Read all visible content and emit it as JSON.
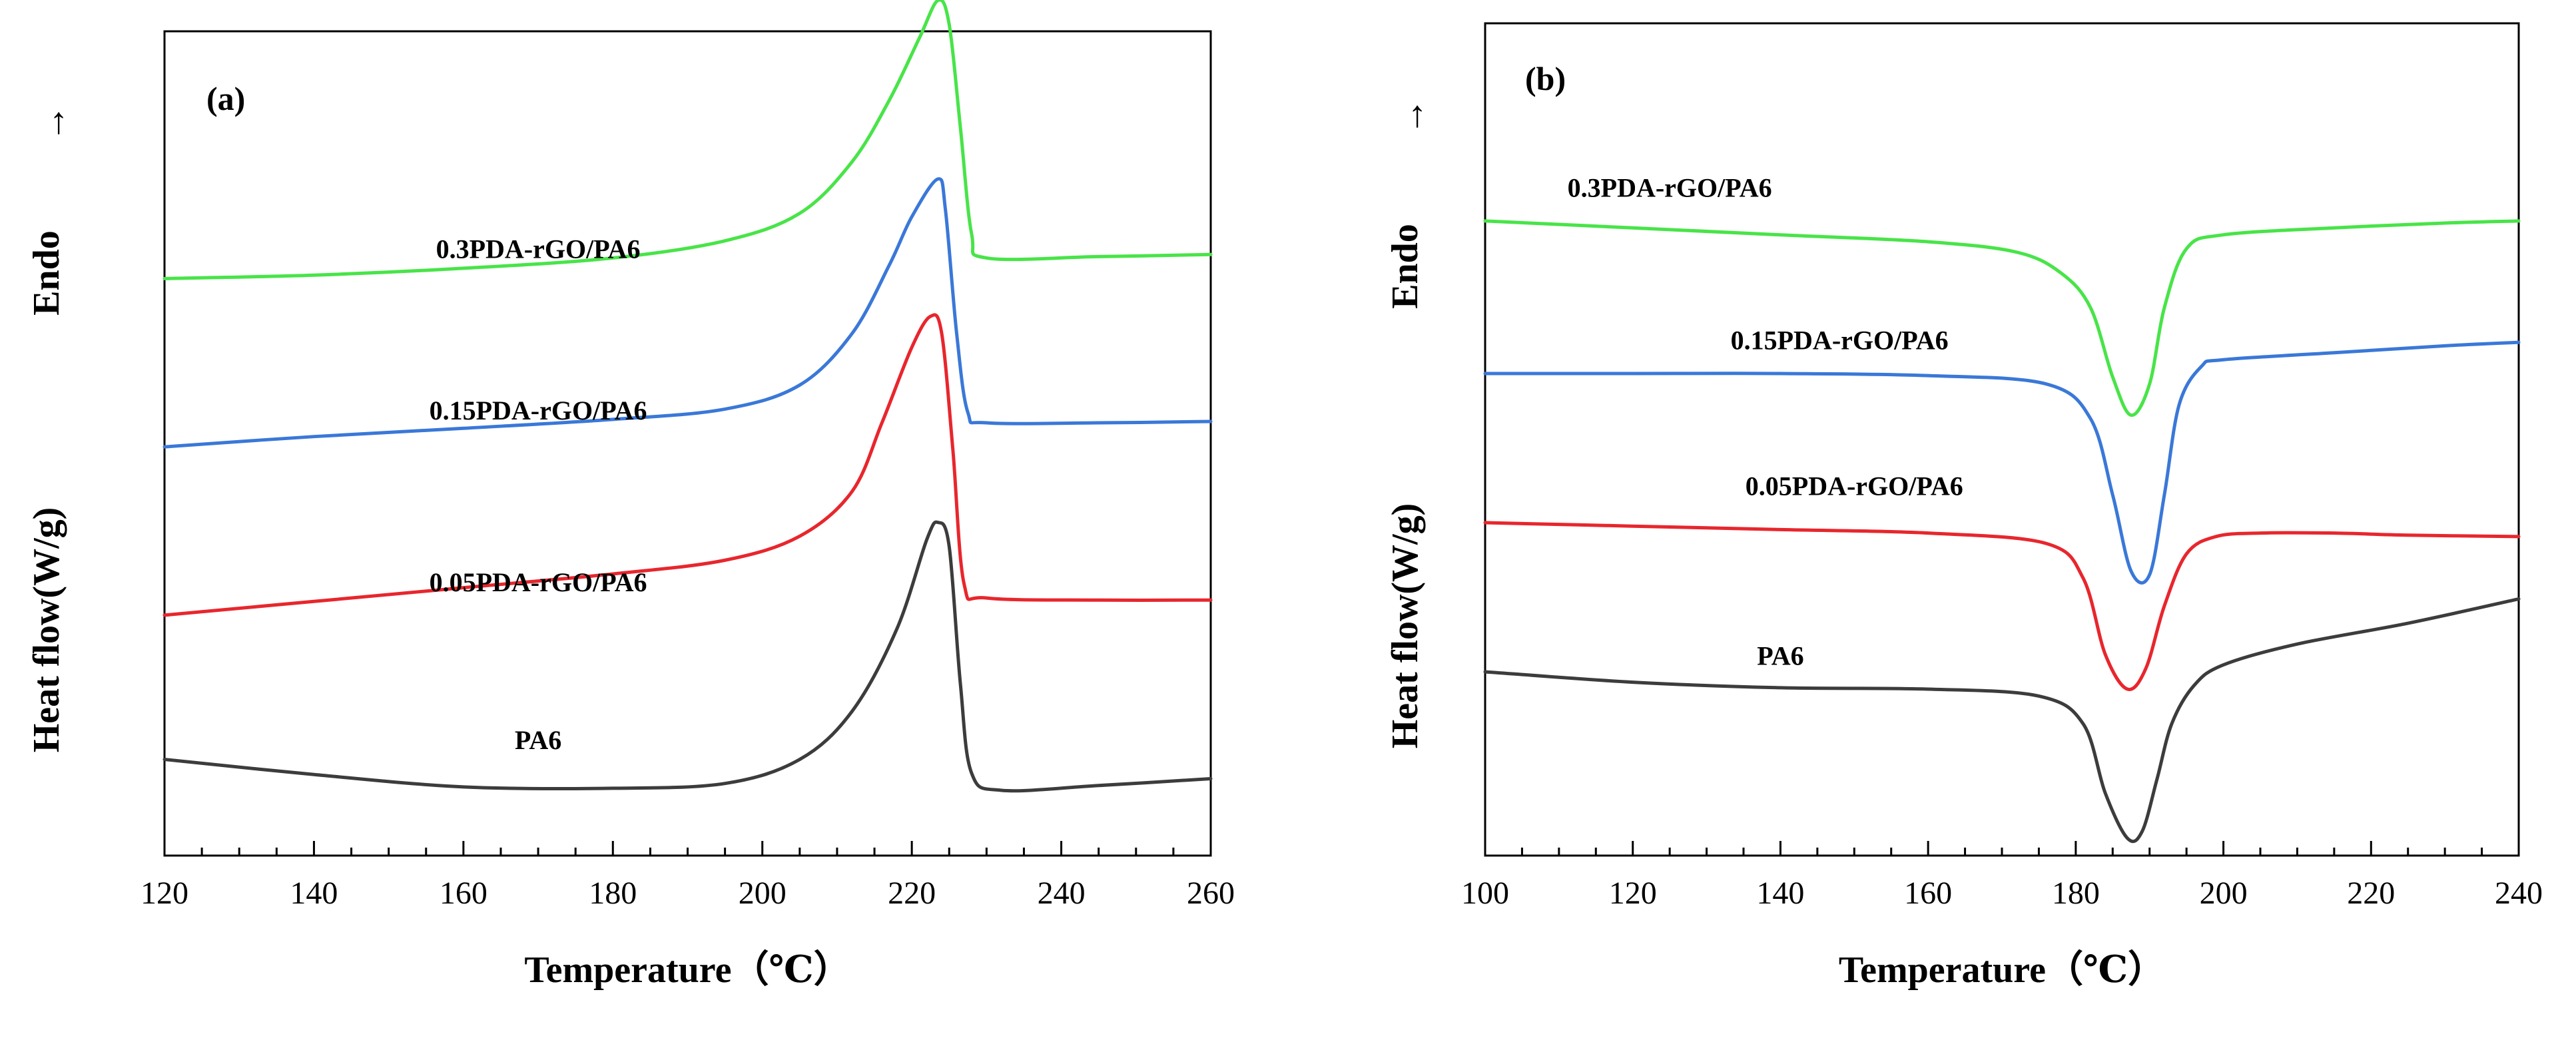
{
  "chart_data": [
    {
      "type": "line",
      "panel_label": "(a)",
      "xlabel": "Temperature（℃）",
      "ylabel": "Heat flow(W/g)",
      "direction_label": "Endo",
      "direction_arrow": "↑",
      "xlim": [
        120,
        260
      ],
      "ylim": [
        0,
        12
      ],
      "xticks": [
        "120",
        "140",
        "160",
        "180",
        "200",
        "220",
        "240",
        "260"
      ],
      "yticks": [],
      "series": [
        {
          "name": "PA6",
          "color": "#3c3c3c",
          "label_at": [
            170,
            1.55
          ],
          "x": [
            120,
            140,
            160,
            180,
            195,
            205,
            212,
            218,
            222,
            223.5,
            225,
            226.5,
            228,
            232,
            245,
            260
          ],
          "y": [
            1.4,
            1.18,
            1.0,
            0.98,
            1.05,
            1.4,
            2.1,
            3.3,
            4.6,
            4.85,
            4.5,
            2.5,
            1.2,
            0.95,
            1.02,
            1.12
          ]
        },
        {
          "name": "0.05PDA-rGO/PA6",
          "color": "#e8262d",
          "label_at": [
            170,
            3.85
          ],
          "x": [
            120,
            140,
            160,
            180,
            195,
            205,
            212,
            216,
            220,
            222.5,
            224,
            225.5,
            227,
            230,
            245,
            260
          ],
          "y": [
            3.5,
            3.7,
            3.9,
            4.1,
            4.3,
            4.65,
            5.3,
            6.3,
            7.4,
            7.85,
            7.6,
            5.9,
            3.95,
            3.75,
            3.72,
            3.72
          ]
        },
        {
          "name": "0.15PDA-rGO/PA6",
          "color": "#3a78d8",
          "label_at": [
            170,
            6.35
          ],
          "x": [
            120,
            140,
            160,
            180,
            195,
            205,
            212,
            217,
            220,
            223.5,
            224.5,
            226,
            227.5,
            230,
            245,
            260
          ],
          "y": [
            5.95,
            6.1,
            6.22,
            6.35,
            6.5,
            6.85,
            7.6,
            8.6,
            9.3,
            9.85,
            9.4,
            7.6,
            6.45,
            6.3,
            6.3,
            6.32
          ]
        },
        {
          "name": "0.3PDA-rGO/PA6",
          "color": "#48e448",
          "label_at": [
            170,
            8.7
          ],
          "x": [
            120,
            140,
            160,
            180,
            195,
            205,
            212,
            217,
            221,
            223.5,
            225,
            226.5,
            228,
            230,
            245,
            260
          ],
          "y": [
            8.4,
            8.45,
            8.55,
            8.7,
            8.95,
            9.35,
            10.1,
            11.0,
            11.9,
            12.45,
            12.1,
            10.6,
            9.05,
            8.7,
            8.72,
            8.75
          ]
        }
      ]
    },
    {
      "type": "line",
      "panel_label": "(b)",
      "xlabel": "Temperature（℃）",
      "ylabel": "Heat flow(W/g)",
      "direction_label": "Endo",
      "direction_arrow": "↑",
      "xlim": [
        100,
        240
      ],
      "ylim": [
        0,
        12
      ],
      "xticks": [
        "100",
        "120",
        "140",
        "160",
        "180",
        "200",
        "220",
        "240"
      ],
      "yticks": [],
      "series": [
        {
          "name": "PA6",
          "color": "#3c3c3c",
          "label_at": [
            140,
            2.75
          ],
          "x": [
            100,
            120,
            140,
            160,
            175,
            181,
            184,
            187,
            189,
            191,
            193,
            196,
            200,
            210,
            225,
            240
          ],
          "y": [
            2.65,
            2.5,
            2.42,
            2.4,
            2.3,
            1.9,
            0.9,
            0.25,
            0.35,
            1.1,
            1.9,
            2.45,
            2.75,
            3.05,
            3.35,
            3.7
          ]
        },
        {
          "name": "0.05PDA-rGO/PA6",
          "color": "#e8262d",
          "label_at": [
            150,
            5.2
          ],
          "x": [
            100,
            120,
            140,
            160,
            176,
            181,
            184,
            187,
            189.5,
            192,
            195,
            199,
            205,
            215,
            225,
            240
          ],
          "y": [
            4.8,
            4.75,
            4.7,
            4.65,
            4.5,
            4.0,
            2.9,
            2.4,
            2.7,
            3.6,
            4.35,
            4.6,
            4.65,
            4.65,
            4.62,
            4.6
          ]
        },
        {
          "name": "0.15PDA-rGO/PA6",
          "color": "#3a78d8",
          "label_at": [
            148,
            7.3
          ],
          "x": [
            100,
            120,
            140,
            160,
            176,
            182,
            185,
            187.5,
            190,
            192,
            194,
            197,
            200,
            215,
            230,
            240
          ],
          "y": [
            6.95,
            6.95,
            6.95,
            6.92,
            6.8,
            6.3,
            5.2,
            4.1,
            4.05,
            5.2,
            6.5,
            7.05,
            7.15,
            7.25,
            7.35,
            7.4
          ]
        },
        {
          "name": "0.3PDA-rGO/PA6",
          "color": "#48e448",
          "label_at": [
            125,
            9.5
          ],
          "x": [
            100,
            120,
            140,
            160,
            172,
            178,
            182,
            185,
            187.5,
            190,
            192,
            195,
            200,
            215,
            230,
            240
          ],
          "y": [
            9.15,
            9.05,
            8.95,
            8.85,
            8.7,
            8.4,
            7.9,
            6.9,
            6.35,
            6.8,
            7.9,
            8.75,
            8.95,
            9.05,
            9.12,
            9.15
          ]
        }
      ]
    }
  ]
}
